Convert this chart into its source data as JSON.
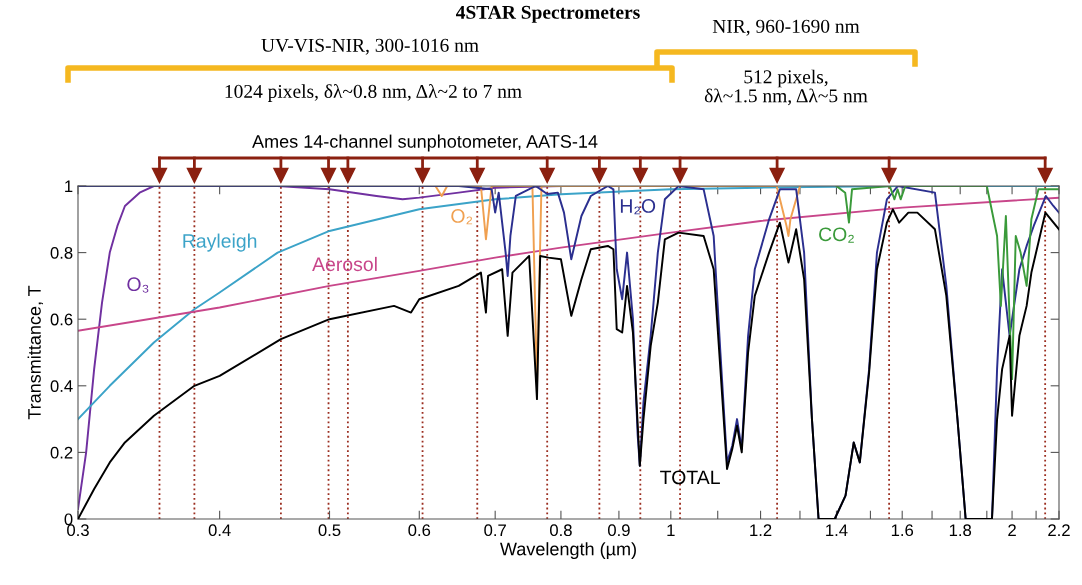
{
  "chart_data": {
    "type": "line",
    "title": "4STAR Spectrometers",
    "xlabel": "Wavelength (µm)",
    "ylabel": "Transmittance, T",
    "log": "x",
    "grid": false,
    "marker": "none",
    "line_style": "solid",
    "xlim": [
      0.3,
      2.2
    ],
    "ylim": [
      0,
      1
    ],
    "xticks": [
      0.3,
      0.4,
      0.5,
      0.6,
      0.7,
      0.8,
      0.9,
      1,
      {
        "value": 1.1,
        "label": null
      },
      1.2,
      {
        "value": 1.3,
        "label": null
      },
      1.4,
      {
        "value": 1.5,
        "label": null
      },
      1.6,
      {
        "value": 1.7,
        "label": null
      },
      1.8,
      {
        "value": 1.9,
        "label": null
      },
      2,
      {
        "value": 2.1,
        "label": null
      },
      2.2
    ],
    "yticks": [
      0,
      0.2,
      0.4,
      0.6,
      0.8,
      1
    ],
    "series": [
      {
        "name": "O₃",
        "color": "#7030a0",
        "x": [
          0.3,
          0.305,
          0.31,
          0.315,
          0.32,
          0.325,
          0.33,
          0.34,
          0.35,
          0.45,
          0.5,
          0.55,
          0.58,
          0.6,
          0.65,
          0.7,
          0.8
        ],
        "values": [
          0.03,
          0.2,
          0.45,
          0.65,
          0.8,
          0.88,
          0.94,
          0.98,
          1.0,
          1.0,
          0.99,
          0.97,
          0.96,
          0.965,
          0.98,
          0.995,
          1.0
        ]
      },
      {
        "name": "Rayleigh",
        "color": "#3ba3c8",
        "x": [
          0.3,
          0.32,
          0.35,
          0.38,
          0.4,
          0.45,
          0.5,
          0.6,
          0.7,
          0.8,
          1,
          1.2,
          1.6,
          2.2
        ],
        "values": [
          0.3,
          0.4,
          0.53,
          0.63,
          0.68,
          0.8,
          0.865,
          0.93,
          0.96,
          0.975,
          0.99,
          0.995,
          1.0,
          1.0
        ]
      },
      {
        "name": "Aerosol",
        "color": "#c8468a",
        "x": [
          0.3,
          0.4,
          0.5,
          0.6,
          0.7,
          0.8,
          1,
          1.2,
          1.6,
          2.2
        ],
        "values": [
          0.565,
          0.635,
          0.7,
          0.745,
          0.785,
          0.815,
          0.86,
          0.895,
          0.935,
          0.965
        ]
      },
      {
        "name": "O₂",
        "color": "#f0a050",
        "x": [
          0.62,
          0.628,
          0.635,
          0.68,
          0.687,
          0.695,
          0.755,
          0.762,
          0.769,
          1.24,
          1.265,
          1.27,
          1.275,
          1.3
        ],
        "values": [
          1.0,
          0.97,
          1.0,
          1.0,
          0.84,
          1.0,
          1.0,
          0.4,
          1.0,
          1.0,
          0.88,
          0.85,
          0.9,
          1.0
        ]
      },
      {
        "name": "H₂O",
        "color": "#2b2f8f",
        "x": [
          0.3,
          0.65,
          0.695,
          0.7,
          0.705,
          0.715,
          0.718,
          0.722,
          0.73,
          0.76,
          0.778,
          0.795,
          0.805,
          0.817,
          0.834,
          0.85,
          0.88,
          0.89,
          0.896,
          0.906,
          0.915,
          0.926,
          0.935,
          0.939,
          0.946,
          0.96,
          0.974,
          0.988,
          1.016,
          1.069,
          1.091,
          1.106,
          1.121,
          1.133,
          1.144,
          1.155,
          1.17,
          1.186,
          1.221,
          1.248,
          1.29,
          1.311,
          1.332,
          1.35,
          1.395,
          1.426,
          1.45,
          1.468,
          1.496,
          1.52,
          1.551,
          1.586,
          1.71,
          1.75,
          1.79,
          1.82,
          1.92,
          1.94,
          1.96,
          1.99,
          2.0,
          2.03,
          2.06,
          2.09,
          2.142,
          2.175,
          2.2
        ],
        "values": [
          1.0,
          1.0,
          0.99,
          0.92,
          0.98,
          0.8,
          0.73,
          0.85,
          0.97,
          1.0,
          0.976,
          0.98,
          0.92,
          0.78,
          0.91,
          0.97,
          1.0,
          0.99,
          0.75,
          0.66,
          0.8,
          0.6,
          0.25,
          0.16,
          0.35,
          0.55,
          0.8,
          0.96,
          1.0,
          0.99,
          0.85,
          0.5,
          0.17,
          0.22,
          0.3,
          0.21,
          0.55,
          0.75,
          0.9,
          0.99,
          0.99,
          0.8,
          0.3,
          0.0,
          0.0,
          0.07,
          0.23,
          0.17,
          0.45,
          0.8,
          0.96,
          1.0,
          0.98,
          0.7,
          0.3,
          0.0,
          0.0,
          0.45,
          0.75,
          0.55,
          0.6,
          0.75,
          0.82,
          0.88,
          0.97,
          0.94,
          0.92
        ]
      },
      {
        "name": "CO₂",
        "color": "#3a9a3a",
        "x": [
          1.4,
          1.425,
          1.436,
          1.445,
          1.56,
          1.575,
          1.585,
          1.595,
          1.61,
          1.9,
          1.94,
          1.955,
          1.975,
          1.99,
          2.0,
          2.015,
          2.035,
          2.06,
          2.08,
          2.11,
          2.2
        ],
        "values": [
          1.0,
          0.98,
          0.89,
          0.99,
          1.0,
          0.96,
          0.99,
          0.96,
          1.0,
          1.0,
          0.85,
          0.64,
          0.91,
          0.6,
          0.42,
          0.85,
          0.8,
          0.7,
          0.9,
          0.99,
          0.99
        ]
      },
      {
        "name": "TOTAL",
        "color": "#000000",
        "x": [
          0.3,
          0.31,
          0.32,
          0.33,
          0.35,
          0.38,
          0.4,
          0.453,
          0.5,
          0.57,
          0.59,
          0.6,
          0.65,
          0.68,
          0.687,
          0.69,
          0.71,
          0.718,
          0.725,
          0.75,
          0.762,
          0.767,
          0.78,
          0.8,
          0.817,
          0.834,
          0.85,
          0.88,
          0.89,
          0.896,
          0.906,
          0.915,
          0.926,
          0.939,
          0.946,
          0.96,
          0.974,
          0.988,
          1.016,
          1.069,
          1.091,
          1.106,
          1.121,
          1.133,
          1.144,
          1.155,
          1.17,
          1.186,
          1.221,
          1.248,
          1.27,
          1.29,
          1.311,
          1.332,
          1.35,
          1.395,
          1.426,
          1.45,
          1.468,
          1.496,
          1.52,
          1.551,
          1.57,
          1.59,
          1.62,
          1.65,
          1.71,
          1.75,
          1.79,
          1.82,
          1.92,
          1.94,
          1.96,
          1.99,
          2.0,
          2.03,
          2.06,
          2.08,
          2.14,
          2.2
        ],
        "values": [
          0.0,
          0.09,
          0.17,
          0.23,
          0.31,
          0.4,
          0.43,
          0.54,
          0.6,
          0.64,
          0.62,
          0.66,
          0.7,
          0.74,
          0.62,
          0.73,
          0.75,
          0.55,
          0.74,
          0.79,
          0.36,
          0.79,
          0.785,
          0.78,
          0.61,
          0.72,
          0.81,
          0.82,
          0.81,
          0.57,
          0.56,
          0.7,
          0.56,
          0.16,
          0.3,
          0.52,
          0.65,
          0.84,
          0.86,
          0.85,
          0.75,
          0.45,
          0.15,
          0.21,
          0.28,
          0.2,
          0.5,
          0.67,
          0.8,
          0.89,
          0.77,
          0.87,
          0.72,
          0.3,
          0.0,
          0.0,
          0.07,
          0.23,
          0.17,
          0.44,
          0.75,
          0.89,
          0.93,
          0.89,
          0.92,
          0.92,
          0.87,
          0.67,
          0.3,
          0.0,
          0.0,
          0.3,
          0.45,
          0.55,
          0.31,
          0.55,
          0.64,
          0.74,
          0.92,
          0.87
        ]
      }
    ],
    "ref_lines": [
      {
        "axis": "x",
        "value": 0.354,
        "color": "#9b2d1f",
        "line_style": "dotted"
      },
      {
        "axis": "x",
        "value": 0.38,
        "color": "#9b2d1f",
        "line_style": "dotted"
      },
      {
        "axis": "x",
        "value": 0.453,
        "color": "#9b2d1f",
        "line_style": "dotted"
      },
      {
        "axis": "x",
        "value": 0.499,
        "color": "#9b2d1f",
        "line_style": "dotted"
      },
      {
        "axis": "x",
        "value": 0.519,
        "color": "#9b2d1f",
        "line_style": "dotted"
      },
      {
        "axis": "x",
        "value": 0.604,
        "color": "#9b2d1f",
        "line_style": "dotted"
      },
      {
        "axis": "x",
        "value": 0.675,
        "color": "#9b2d1f",
        "line_style": "dotted"
      },
      {
        "axis": "x",
        "value": 0.778,
        "color": "#9b2d1f",
        "line_style": "dotted"
      },
      {
        "axis": "x",
        "value": 0.865,
        "color": "#9b2d1f",
        "line_style": "dotted"
      },
      {
        "axis": "x",
        "value": 0.94,
        "color": "#9b2d1f",
        "line_style": "dotted"
      },
      {
        "axis": "x",
        "value": 1.019,
        "color": "#9b2d1f",
        "line_style": "dotted"
      },
      {
        "axis": "x",
        "value": 1.241,
        "color": "#9b2d1f",
        "line_style": "dotted"
      },
      {
        "axis": "x",
        "value": 1.558,
        "color": "#9b2d1f",
        "line_style": "dotted"
      },
      {
        "axis": "x",
        "value": 2.139,
        "color": "#9b2d1f",
        "line_style": "dotted"
      }
    ],
    "annotations": [
      "Ames 14-channel sunphotometer, AATS-14",
      "UV-VIS-NIR, 300-1016 nm",
      "1024 pixels, δλ~0.8 nm, Δλ~2 to 7 nm",
      "NIR, 960-1690 nm",
      "512 pixels,\nδλ~1.5 nm, Δλ~5 nm"
    ]
  }
}
